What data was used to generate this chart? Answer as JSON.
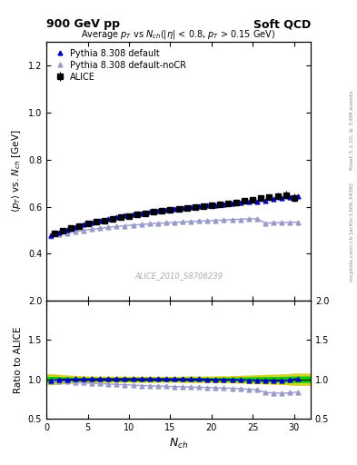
{
  "title_top": "900 GeV pp",
  "title_top_right": "Soft QCD",
  "plot_title": "Average $p_T$ vs $N_{ch}$(|$\\eta$| < 0.8, $p_T$ > 0.15 GeV)",
  "ylabel_main": "$\\langle p_T \\rangle$ vs. $N_{ch}$ [GeV]",
  "ylabel_ratio": "Ratio to ALICE",
  "xlabel": "$N_{ch}$",
  "watermark": "ALICE_2010_S8706239",
  "right_label_top": "Rivet 3.1.10, ≥ 3.6M events",
  "right_label_bot": "mcplots.cern.ch [arXiv:1306.3436]",
  "ylim_main": [
    0.2,
    1.3
  ],
  "ylim_ratio": [
    0.5,
    2.0
  ],
  "yticks_main": [
    0.4,
    0.6,
    0.8,
    1.0,
    1.2
  ],
  "yticks_ratio": [
    0.5,
    1.0,
    1.5,
    2.0
  ],
  "xlim": [
    0,
    32
  ],
  "alice_x": [
    1,
    2,
    3,
    4,
    5,
    6,
    7,
    8,
    9,
    10,
    11,
    12,
    13,
    14,
    15,
    16,
    17,
    18,
    19,
    20,
    21,
    22,
    23,
    24,
    25,
    26,
    27,
    28,
    29,
    30
  ],
  "alice_y": [
    0.487,
    0.498,
    0.508,
    0.518,
    0.527,
    0.535,
    0.542,
    0.549,
    0.555,
    0.561,
    0.567,
    0.572,
    0.577,
    0.581,
    0.586,
    0.59,
    0.594,
    0.598,
    0.602,
    0.606,
    0.61,
    0.614,
    0.618,
    0.625,
    0.63,
    0.635,
    0.64,
    0.645,
    0.65,
    0.638
  ],
  "alice_yerr": [
    0.012,
    0.01,
    0.009,
    0.008,
    0.007,
    0.007,
    0.007,
    0.007,
    0.007,
    0.007,
    0.007,
    0.007,
    0.007,
    0.007,
    0.007,
    0.007,
    0.008,
    0.008,
    0.008,
    0.008,
    0.009,
    0.009,
    0.01,
    0.011,
    0.012,
    0.013,
    0.014,
    0.015,
    0.016,
    0.018
  ],
  "pythia_default_x": [
    0.5,
    1.5,
    2.5,
    3.5,
    4.5,
    5.5,
    6.5,
    7.5,
    8.5,
    9.5,
    10.5,
    11.5,
    12.5,
    13.5,
    14.5,
    15.5,
    16.5,
    17.5,
    18.5,
    19.5,
    20.5,
    21.5,
    22.5,
    23.5,
    24.5,
    25.5,
    26.5,
    27.5,
    28.5,
    29.5,
    30.5
  ],
  "pythia_default_y": [
    0.48,
    0.491,
    0.503,
    0.514,
    0.524,
    0.533,
    0.541,
    0.548,
    0.555,
    0.562,
    0.568,
    0.573,
    0.578,
    0.582,
    0.587,
    0.591,
    0.594,
    0.597,
    0.601,
    0.604,
    0.607,
    0.61,
    0.613,
    0.617,
    0.62,
    0.623,
    0.627,
    0.631,
    0.635,
    0.639,
    0.643
  ],
  "pythia_nocr_x": [
    0.5,
    1.5,
    2.5,
    3.5,
    4.5,
    5.5,
    6.5,
    7.5,
    8.5,
    9.5,
    10.5,
    11.5,
    12.5,
    13.5,
    14.5,
    15.5,
    16.5,
    17.5,
    18.5,
    19.5,
    20.5,
    21.5,
    22.5,
    23.5,
    24.5,
    25.5,
    26.5,
    27.5,
    28.5,
    29.5,
    30.5
  ],
  "pythia_nocr_y": [
    0.474,
    0.481,
    0.488,
    0.494,
    0.499,
    0.504,
    0.508,
    0.512,
    0.516,
    0.519,
    0.522,
    0.524,
    0.527,
    0.529,
    0.531,
    0.533,
    0.535,
    0.537,
    0.539,
    0.54,
    0.542,
    0.543,
    0.545,
    0.546,
    0.548,
    0.549,
    0.53,
    0.531,
    0.532,
    0.533,
    0.534
  ],
  "color_alice": "#000000",
  "color_pythia_default": "#0000cc",
  "color_pythia_nocr": "#9999cc",
  "color_band_green": "#00cc00",
  "color_band_yellow": "#cccc00",
  "bg_color": "#ffffff"
}
